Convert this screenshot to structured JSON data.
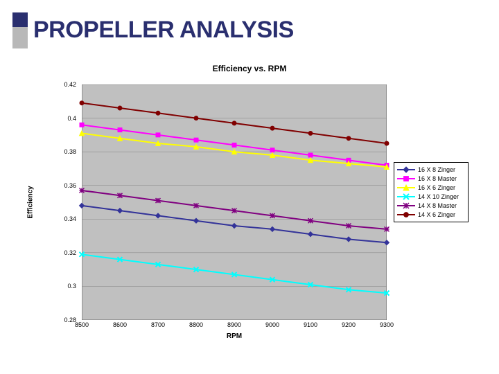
{
  "slide": {
    "title": "PROPELLER ANALYSIS",
    "title_fontsize": 34,
    "title_weight": "bold",
    "title_color": "#2a2f6f",
    "accent": {
      "top_color": "#2a2f6f",
      "bottom_color": "#b8b8b8"
    }
  },
  "chart": {
    "type": "line",
    "title": "Efficiency vs. RPM",
    "title_fontsize": 12,
    "title_weight": "bold",
    "xlabel": "RPM",
    "ylabel": "Efficiency",
    "label_fontsize": 10,
    "background_color": "#c0c0c0",
    "grid_color": "#808080",
    "grid_on": true,
    "xlim": [
      8500,
      9300
    ],
    "xtick_step": 100,
    "xtick_labels": [
      "8500",
      "8600",
      "8700",
      "8800",
      "8900",
      "9000",
      "9100",
      "9200",
      "9300"
    ],
    "ylim": [
      0.28,
      0.42
    ],
    "ytick_step": 0.02,
    "ytick_labels": [
      "0.42",
      "0.4",
      "0.38",
      "0.36",
      "0.34",
      "0.32",
      "0.3",
      "0.28"
    ],
    "line_width": 2,
    "marker_size": 7,
    "series": [
      {
        "name": "16 X 8 Zinger",
        "color": "#333399",
        "marker": "diamond",
        "x": [
          8500,
          8600,
          8700,
          8800,
          8900,
          9000,
          9100,
          9200,
          9300
        ],
        "y": [
          0.348,
          0.345,
          0.342,
          0.339,
          0.336,
          0.334,
          0.331,
          0.328,
          0.326
        ]
      },
      {
        "name": "16 X 8 Master",
        "color": "#ff00ff",
        "marker": "square",
        "x": [
          8500,
          8600,
          8700,
          8800,
          8900,
          9000,
          9100,
          9200,
          9300
        ],
        "y": [
          0.396,
          0.393,
          0.39,
          0.387,
          0.384,
          0.381,
          0.378,
          0.375,
          0.372
        ]
      },
      {
        "name": "16 X 6 Zinger",
        "color": "#ffff00",
        "marker": "triangle",
        "x": [
          8500,
          8600,
          8700,
          8800,
          8900,
          9000,
          9100,
          9200,
          9300
        ],
        "y": [
          0.391,
          0.388,
          0.385,
          0.383,
          0.38,
          0.378,
          0.375,
          0.373,
          0.371
        ]
      },
      {
        "name": "14 X 10 Zinger",
        "color": "#00ffff",
        "marker": "x",
        "x": [
          8500,
          8600,
          8700,
          8800,
          8900,
          9000,
          9100,
          9200,
          9300
        ],
        "y": [
          0.319,
          0.316,
          0.313,
          0.31,
          0.307,
          0.304,
          0.301,
          0.298,
          0.296
        ]
      },
      {
        "name": "14 X 8 Master",
        "color": "#800080",
        "marker": "asterisk",
        "x": [
          8500,
          8600,
          8700,
          8800,
          8900,
          9000,
          9100,
          9200,
          9300
        ],
        "y": [
          0.357,
          0.354,
          0.351,
          0.348,
          0.345,
          0.342,
          0.339,
          0.336,
          0.334
        ]
      },
      {
        "name": "14 X 6 Zinger",
        "color": "#800000",
        "marker": "circle",
        "x": [
          8500,
          8600,
          8700,
          8800,
          8900,
          9000,
          9100,
          9200,
          9300
        ],
        "y": [
          0.409,
          0.406,
          0.403,
          0.4,
          0.397,
          0.394,
          0.391,
          0.388,
          0.385
        ]
      }
    ]
  }
}
